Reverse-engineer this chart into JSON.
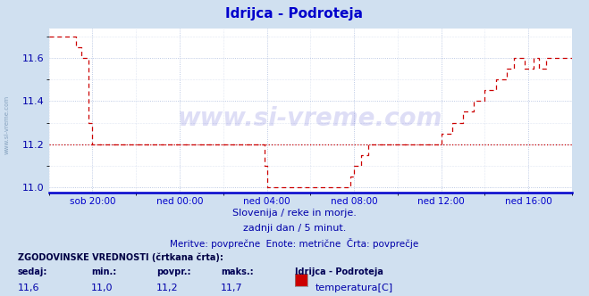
{
  "title": "Idrijca - Podroteja",
  "bg_color": "#d0e0f0",
  "plot_bg_color": "#ffffff",
  "line_color": "#cc0000",
  "axis_color": "#0000cc",
  "grid_color": "#aabbdd",
  "title_color": "#0000cc",
  "text_color": "#0000aa",
  "ylim": [
    10.975,
    11.74
  ],
  "yticks": [
    11.0,
    11.2,
    11.4,
    11.6
  ],
  "xtick_positions": [
    2,
    6,
    10,
    14,
    18,
    22
  ],
  "xtick_labels": [
    "sob 20:00",
    "ned 00:00",
    "ned 04:00",
    "ned 08:00",
    "ned 12:00",
    "ned 16:00"
  ],
  "xlim": [
    0,
    24
  ],
  "avg_value": 11.2,
  "footer_line1": "Slovenija / reke in morje.",
  "footer_line2": "zadnji dan / 5 minut.",
  "footer_line3": "Meritve: povprečne  Enote: metrične  Črta: povprečje",
  "legend_header": "ZGODOVINSKE VREDNOSTI (črtkana črta):",
  "legend_col_headers": [
    "sedaj:",
    "min.:",
    "povpr.:",
    "maks.:",
    "Idrijca - Podroteja"
  ],
  "legend_col_values": [
    "11,6",
    "11,0",
    "11,2",
    "11,7",
    "temperatura[C]"
  ],
  "watermark": "www.si-vreme.com"
}
